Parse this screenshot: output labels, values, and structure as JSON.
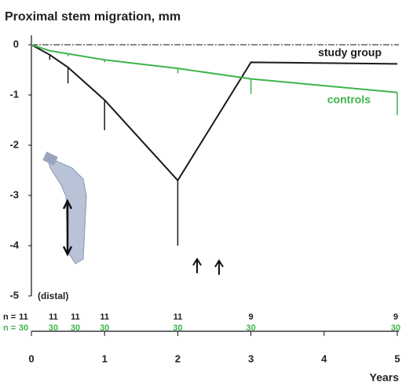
{
  "chart_data": {
    "type": "line",
    "title": "Proximal stem migration, mm",
    "x_label": "Years",
    "annotation": "(distal)",
    "n_label": "n =",
    "x": [
      0,
      0.25,
      0.5,
      1,
      2,
      3,
      5
    ],
    "xlim": [
      0,
      5
    ],
    "xticks": [
      0,
      1,
      2,
      3,
      4,
      5
    ],
    "ylim": [
      -5,
      0
    ],
    "yticks": [
      0,
      -1,
      -2,
      -3,
      -4,
      -5
    ],
    "series": [
      {
        "name": "study group",
        "color": "#1a1a1a",
        "values": [
          0,
          -0.2,
          -0.45,
          -1.1,
          -2.7,
          -0.35,
          -0.38
        ],
        "errors": [
          null,
          0.1,
          0.32,
          0.6,
          1.3,
          null,
          null
        ],
        "n": [
          11,
          11,
          11,
          11,
          11,
          9,
          9
        ]
      },
      {
        "name": "controls",
        "color": "#3db54a",
        "values": [
          0,
          -0.12,
          -0.18,
          -0.3,
          -0.47,
          -0.68,
          -0.95
        ],
        "errors": [
          null,
          null,
          0.05,
          0.05,
          0.1,
          0.3,
          0.45
        ],
        "n": [
          30,
          30,
          30,
          30,
          30,
          30,
          30
        ]
      }
    ]
  }
}
